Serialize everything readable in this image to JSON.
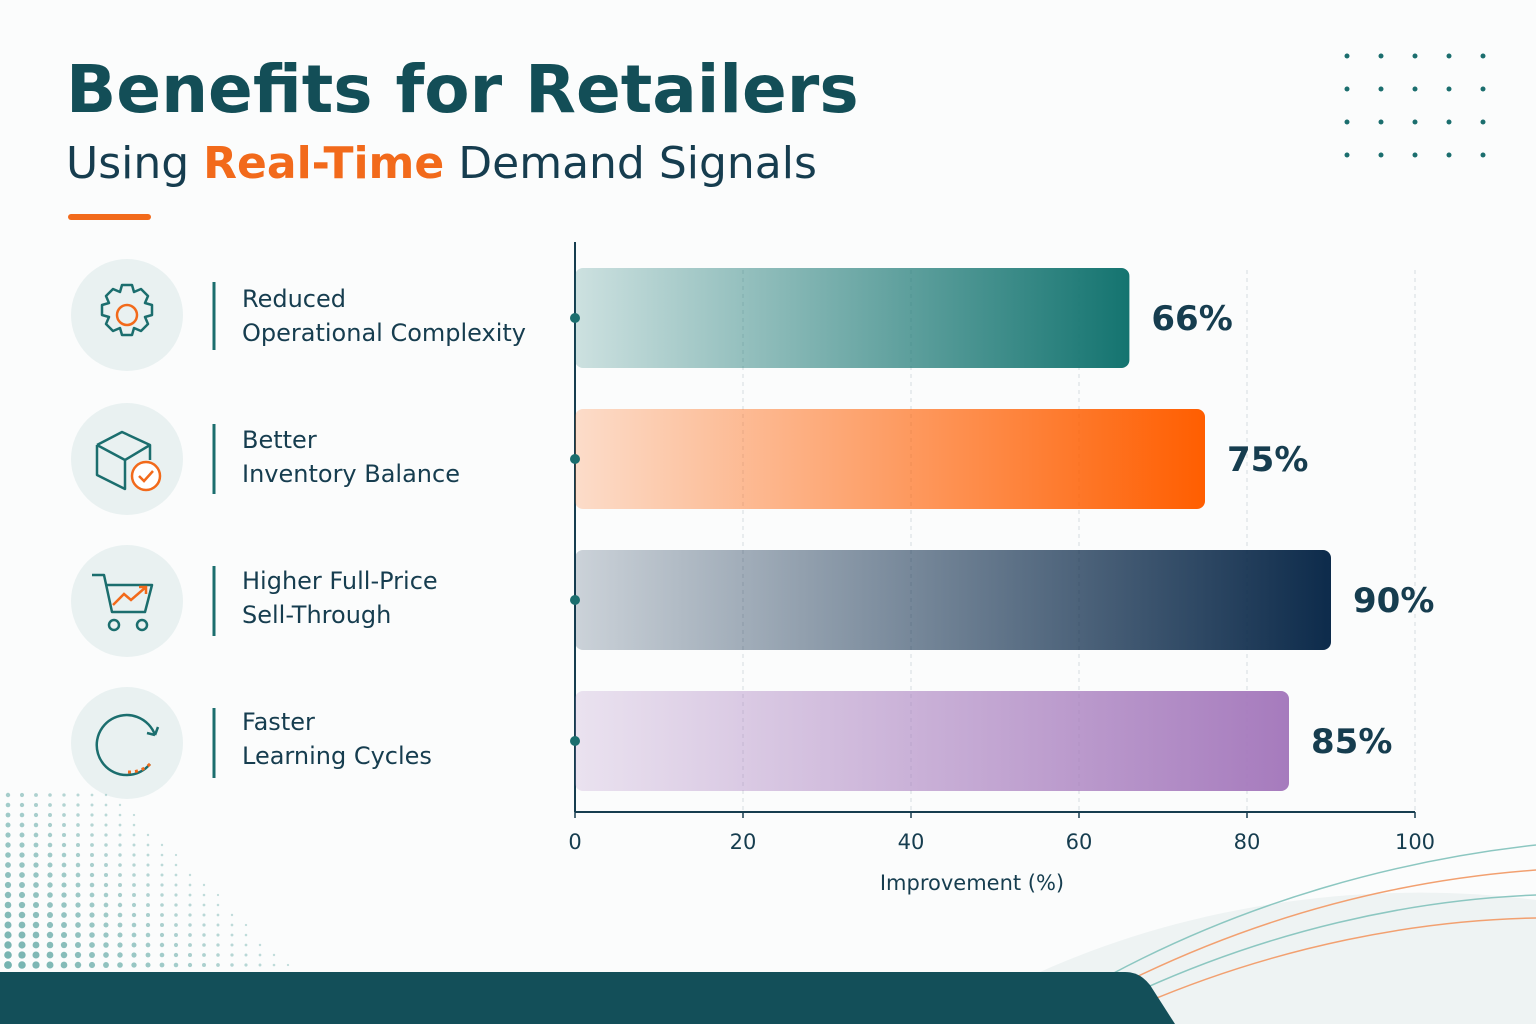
{
  "chart_data": {
    "type": "bar",
    "orientation": "horizontal",
    "title": "Benefits for Retailers",
    "subtitle_parts": [
      "Using",
      "Real-Time",
      "Demand Signals"
    ],
    "categories": [
      "Reduced\nOperational Complexity",
      "Better\nInventory Balance",
      "Higher Full-Price\nSell-Through",
      "Faster\nLearning Cycles"
    ],
    "values": [
      66,
      75,
      90,
      85
    ],
    "value_labels": [
      "66%",
      "75%",
      "90%",
      "85%"
    ],
    "colors": [
      "#147470",
      "#ff5e00",
      "#0d2b4b",
      "#a67bbd"
    ],
    "xlabel": "Improvement (%)",
    "xlim": [
      0,
      100
    ],
    "xticks": [
      0,
      20,
      40,
      60,
      80,
      100
    ],
    "grid": true
  }
}
